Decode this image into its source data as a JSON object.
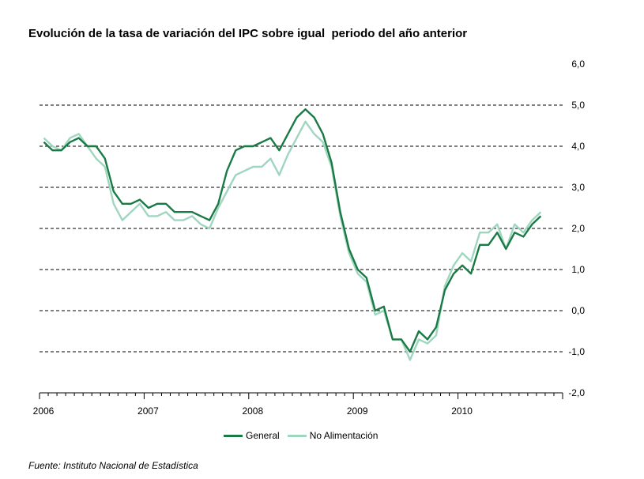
{
  "title": "Evolución de la tasa de variación del IPC sobre igual  periodo del año anterior",
  "source": "Fuente: Instituto Nacional de Estadística",
  "chart_data": {
    "type": "line",
    "ylim": [
      -2,
      6
    ],
    "y_ticks": [
      "-2,0",
      "-1,0",
      "0,0",
      "1,0",
      "2,0",
      "3,0",
      "4,0",
      "5,0",
      "6,0"
    ],
    "y_tick_values": [
      -2,
      -1,
      0,
      1,
      2,
      3,
      4,
      5,
      6
    ],
    "x_tick_labels": [
      "2006",
      "2007",
      "2008",
      "2009",
      "2010"
    ],
    "x_months_total": 60,
    "grid": "horizontal dashed",
    "legend_position": "bottom",
    "series": [
      {
        "name": "General",
        "color": "#1a7a46",
        "values": [
          4.1,
          3.9,
          3.9,
          4.1,
          4.2,
          4.0,
          4.0,
          3.7,
          2.9,
          2.6,
          2.6,
          2.7,
          2.5,
          2.6,
          2.6,
          2.4,
          2.4,
          2.4,
          2.3,
          2.2,
          2.6,
          3.4,
          3.9,
          4.0,
          4.0,
          4.1,
          4.2,
          3.9,
          4.3,
          4.7,
          4.9,
          4.7,
          4.3,
          3.6,
          2.4,
          1.5,
          1.0,
          0.8,
          0.0,
          0.1,
          -0.7,
          -0.7,
          -1.0,
          -0.5,
          -0.7,
          -0.4,
          0.5,
          0.9,
          1.1,
          0.9,
          1.6,
          1.6,
          1.9,
          1.5,
          1.9,
          1.8,
          2.1,
          2.3
        ]
      },
      {
        "name": "No Alimentación",
        "color": "#9fd6bf",
        "values": [
          4.2,
          4.0,
          3.9,
          4.2,
          4.3,
          4.0,
          3.7,
          3.5,
          2.6,
          2.2,
          2.4,
          2.6,
          2.3,
          2.3,
          2.4,
          2.2,
          2.2,
          2.3,
          2.1,
          2.0,
          2.5,
          2.9,
          3.3,
          3.4,
          3.5,
          3.5,
          3.7,
          3.3,
          3.8,
          4.2,
          4.6,
          4.3,
          4.1,
          3.5,
          2.3,
          1.4,
          0.9,
          0.7,
          -0.1,
          0.0,
          -0.7,
          -0.7,
          -1.2,
          -0.7,
          -0.8,
          -0.6,
          0.6,
          1.1,
          1.4,
          1.2,
          1.9,
          1.9,
          2.1,
          1.5,
          2.1,
          1.9,
          2.2,
          2.4
        ]
      }
    ]
  }
}
